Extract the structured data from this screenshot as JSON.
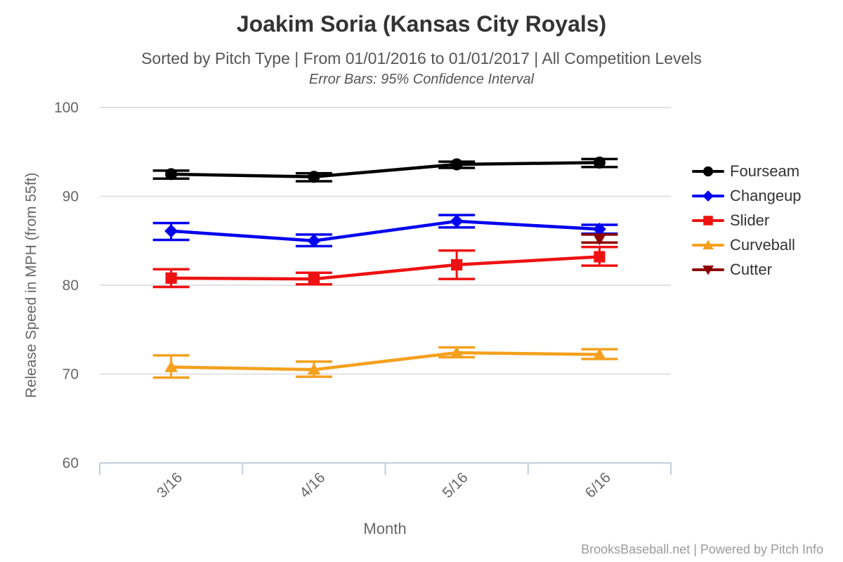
{
  "header": {
    "title": "Joakim Soria (Kansas City Royals)",
    "subtitle": "Sorted by Pitch Type | From 01/01/2016 to 01/01/2017 | All Competition Levels",
    "error_note": "Error Bars: 95% Confidence Interval"
  },
  "footer": {
    "credit": "BrooksBaseball.net | Powered by Pitch Info"
  },
  "colors": {
    "title": "#333333",
    "subtitle": "#555555",
    "tick_label": "#666666",
    "axis_title": "#666666",
    "gridline": "#d9d9d9",
    "axis_line": "#c3cedd",
    "footer": "#9b9b9b"
  },
  "chart_data": {
    "type": "line",
    "title": "Joakim Soria (Kansas City Royals)",
    "subtitle": "Sorted by Pitch Type | From 01/01/2016 to 01/01/2017 | All Competition Levels",
    "annotation": "Error Bars: 95% Confidence Interval",
    "xlabel": "Month",
    "ylabel": "Release Speed in MPH (from 55ft)",
    "categories": [
      "3/16",
      "4/16",
      "5/16",
      "6/16"
    ],
    "ylim": [
      60,
      100
    ],
    "yticks": [
      60,
      70,
      80,
      90,
      100
    ],
    "grid": true,
    "legend_position": "right",
    "error_bars": "95% Confidence Interval",
    "series": [
      {
        "name": "Fourseam",
        "color": "#000000",
        "marker": "circle",
        "values": [
          92.5,
          92.2,
          93.6,
          93.8
        ],
        "ci_low": [
          92.0,
          91.7,
          93.2,
          93.3
        ],
        "ci_high": [
          92.9,
          92.6,
          93.9,
          94.2
        ]
      },
      {
        "name": "Changeup",
        "color": "#0000EE",
        "marker": "diamond",
        "values": [
          86.1,
          85.0,
          87.2,
          86.3
        ],
        "ci_low": [
          85.1,
          84.4,
          86.5,
          85.8
        ],
        "ci_high": [
          87.0,
          85.7,
          87.9,
          86.8
        ]
      },
      {
        "name": "Slider",
        "color": "#EE1111",
        "marker": "square",
        "values": [
          80.8,
          80.7,
          82.3,
          83.2
        ],
        "ci_low": [
          79.8,
          80.1,
          80.7,
          82.2
        ],
        "ci_high": [
          81.8,
          81.4,
          83.9,
          84.3
        ]
      },
      {
        "name": "Curveball",
        "color": "#F5A01E",
        "marker": "triangle-up",
        "values": [
          70.8,
          70.5,
          72.4,
          72.2
        ],
        "ci_low": [
          69.6,
          69.7,
          71.9,
          71.7
        ],
        "ci_high": [
          72.1,
          71.4,
          73.0,
          72.8
        ]
      },
      {
        "name": "Cutter",
        "color": "#8B0000",
        "marker": "triangle-down",
        "values": [
          null,
          null,
          null,
          85.2
        ],
        "ci_low": [
          null,
          null,
          null,
          84.8
        ],
        "ci_high": [
          null,
          null,
          null,
          85.7
        ]
      }
    ]
  }
}
